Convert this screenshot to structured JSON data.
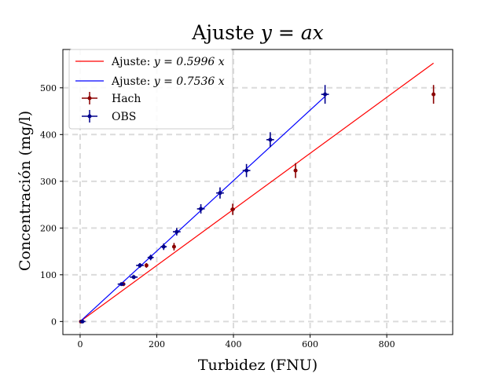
{
  "chart_data": {
    "type": "scatter",
    "title_text": "Ajuste ",
    "title_math": "y = ax",
    "xlabel": "Turbidez (FNU)",
    "ylabel": "Concentración (mg/l)",
    "xlim": [
      -45,
      972
    ],
    "ylim": [
      -28,
      582
    ],
    "xticks": [
      0,
      200,
      400,
      600,
      800
    ],
    "yticks": [
      0,
      100,
      200,
      300,
      400,
      500
    ],
    "grid": true,
    "legend_position": "upper-left",
    "fits": [
      {
        "label_text": "Ajuste: ",
        "label_math": "y = 0.5996 x",
        "slope": 0.5996,
        "x_range": [
          0,
          922
        ],
        "color": "#ff0000"
      },
      {
        "label_text": "Ajuste: ",
        "label_math": "y = 0.7536 x",
        "slope": 0.7536,
        "x_range": [
          0,
          640
        ],
        "color": "#0000ff"
      }
    ],
    "series": [
      {
        "name": "Hach",
        "color": "#8b0000",
        "points": [
          {
            "x": 2,
            "y": 0,
            "xerr": 2,
            "yerr": 2
          },
          {
            "x": 113,
            "y": 80,
            "xerr": 3,
            "yerr": 4
          },
          {
            "x": 173,
            "y": 120,
            "xerr": 4,
            "yerr": 5
          },
          {
            "x": 245,
            "y": 160,
            "xerr": 4,
            "yerr": 8
          },
          {
            "x": 398,
            "y": 240,
            "xerr": 6,
            "yerr": 12
          },
          {
            "x": 562,
            "y": 323,
            "xerr": 4,
            "yerr": 16
          },
          {
            "x": 922,
            "y": 486,
            "xerr": 4,
            "yerr": 20
          }
        ]
      },
      {
        "name": "OBS",
        "color": "#00008b",
        "points": [
          {
            "x": 6,
            "y": 0,
            "xerr": 8,
            "yerr": 3
          },
          {
            "x": 108,
            "y": 80,
            "xerr": 10,
            "yerr": 3
          },
          {
            "x": 140,
            "y": 95,
            "xerr": 10,
            "yerr": 4
          },
          {
            "x": 156,
            "y": 120,
            "xerr": 10,
            "yerr": 5
          },
          {
            "x": 184,
            "y": 137,
            "xerr": 8,
            "yerr": 6
          },
          {
            "x": 218,
            "y": 160,
            "xerr": 8,
            "yerr": 7
          },
          {
            "x": 252,
            "y": 192,
            "xerr": 10,
            "yerr": 8
          },
          {
            "x": 315,
            "y": 241,
            "xerr": 10,
            "yerr": 10
          },
          {
            "x": 365,
            "y": 275,
            "xerr": 10,
            "yerr": 12
          },
          {
            "x": 434,
            "y": 323,
            "xerr": 10,
            "yerr": 14
          },
          {
            "x": 496,
            "y": 389,
            "xerr": 10,
            "yerr": 16
          },
          {
            "x": 639,
            "y": 486,
            "xerr": 10,
            "yerr": 20
          }
        ]
      }
    ]
  }
}
